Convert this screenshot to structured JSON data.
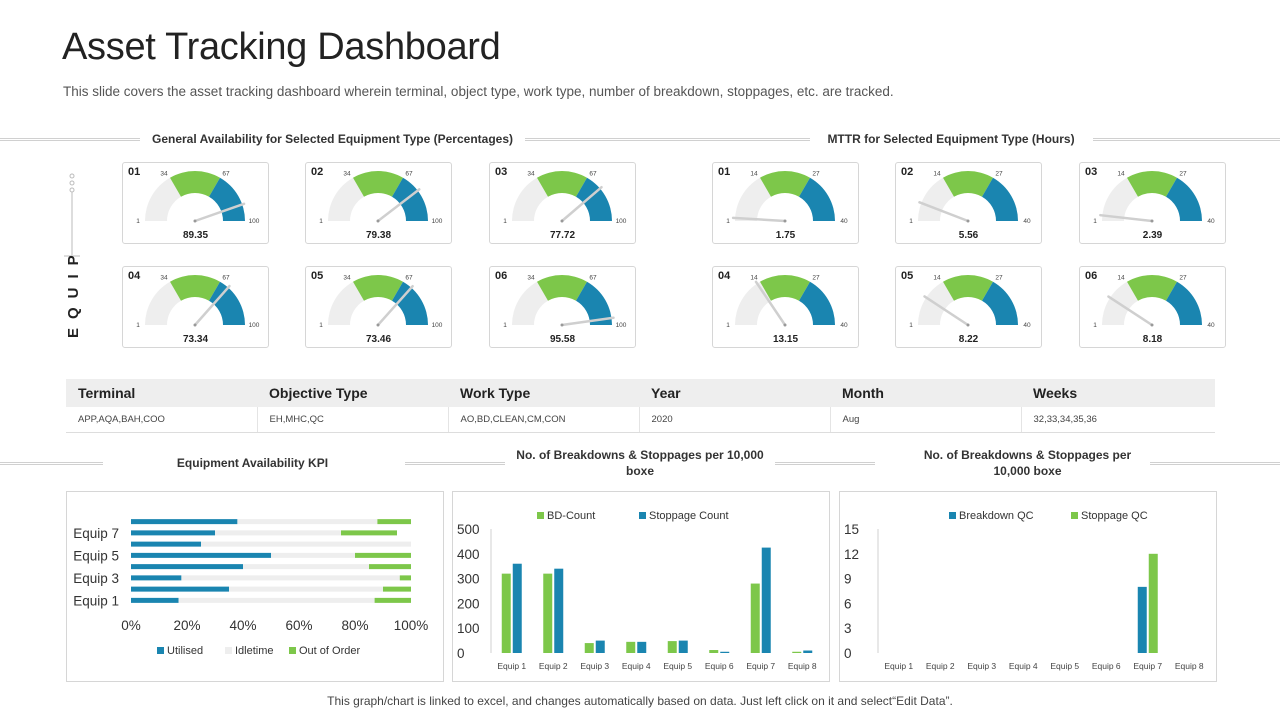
{
  "title": "Asset Tracking Dashboard",
  "subtitle": "This slide covers the asset tracking dashboard wherein terminal, object type, work type, number of breakdown, stoppages, etc. are tracked.",
  "equip_label": "EQUIP",
  "footer": "This graph/chart is linked to excel, and changes automatically based on data. Just left click on it and select“Edit Data”.",
  "colors": {
    "green": "#7dc74a",
    "blue": "#1a85b0",
    "gray": "#eeeeee",
    "needle": "#cfcfcf"
  },
  "availability": {
    "title": "General Availability  for Selected Equipment Type (Percentages)",
    "scale": {
      "min": 1,
      "t1": 34,
      "t2": 67,
      "max": 100
    },
    "gauges": [
      {
        "id": "01",
        "value": "89.35"
      },
      {
        "id": "02",
        "value": "79.38"
      },
      {
        "id": "03",
        "value": "77.72"
      },
      {
        "id": "04",
        "value": "73.34"
      },
      {
        "id": "05",
        "value": "73.46"
      },
      {
        "id": "06",
        "value": "95.58"
      }
    ]
  },
  "mttr": {
    "title": "MTTR for Selected Equipment Type (Hours)",
    "scale": {
      "min": 1,
      "t1": 14,
      "t2": 27,
      "max": 40
    },
    "gauges": [
      {
        "id": "01",
        "value": "1.75"
      },
      {
        "id": "02",
        "value": "5.56"
      },
      {
        "id": "03",
        "value": "2.39"
      },
      {
        "id": "04",
        "value": "13.15"
      },
      {
        "id": "05",
        "value": "8.22"
      },
      {
        "id": "06",
        "value": "8.18"
      }
    ]
  },
  "filters": {
    "headers": [
      "Terminal",
      "Objective Type",
      "Work Type",
      "Year",
      "Month",
      "Weeks"
    ],
    "values": [
      "APP,AQA,BAH,COO",
      "EH,MHC,QC",
      "AO,BD,CLEAN,CM,CON",
      "2020",
      "Aug",
      "32,33,34,35,36"
    ]
  },
  "chart_data": [
    {
      "type": "bar",
      "orientation": "horizontal",
      "stacked": true,
      "title": "Equipment Availability  KPI",
      "categories": [
        "Equip 1",
        "Equip 2",
        "Equip 3",
        "Equip 4",
        "Equip 5",
        "Equip 6",
        "Equip 7",
        "Equip 8"
      ],
      "tick_labels": [
        "Equip 1",
        "Equip 3",
        "Equip 5",
        "Equip 7"
      ],
      "x_ticks": [
        "0%",
        "20%",
        "40%",
        "60%",
        "80%",
        "100%"
      ],
      "xlim": [
        0,
        100
      ],
      "series": [
        {
          "name": "Utilised",
          "color": "#1a85b0",
          "values": [
            17,
            35,
            18,
            40,
            50,
            25,
            30,
            38
          ]
        },
        {
          "name": "Idletime",
          "color": "#eeeeee",
          "values": [
            70,
            55,
            78,
            45,
            30,
            75,
            45,
            50
          ]
        },
        {
          "name": "Out of Order",
          "color": "#7dc74a",
          "values": [
            13,
            10,
            4,
            15,
            20,
            0,
            20,
            12
          ]
        }
      ],
      "legend": "bottom"
    },
    {
      "type": "bar",
      "title": "No. of Breakdowns & Stoppages per 10,000 boxe",
      "categories": [
        "Equip 1",
        "Equip 2",
        "Equip 3",
        "Equip 4",
        "Equip 5",
        "Equip 6",
        "Equip 7",
        "Equip 8"
      ],
      "ylim": [
        0,
        500
      ],
      "y_ticks": [
        "0",
        "100",
        "200",
        "300",
        "400",
        "500"
      ],
      "series": [
        {
          "name": "BD-Count",
          "color": "#7dc74a",
          "values": [
            320,
            320,
            40,
            45,
            48,
            12,
            280,
            5
          ]
        },
        {
          "name": "Stoppage Count",
          "color": "#1a85b0",
          "values": [
            360,
            340,
            50,
            45,
            50,
            5,
            425,
            10
          ]
        }
      ],
      "legend": "top"
    },
    {
      "type": "bar",
      "title": "No. of Breakdowns & Stoppages per 10,000 boxe",
      "categories": [
        "Equip 1",
        "Equip 2",
        "Equip 3",
        "Equip 4",
        "Equip 5",
        "Equip 6",
        "Equip 7",
        "Equip 8"
      ],
      "ylim": [
        0,
        15
      ],
      "y_ticks": [
        "0",
        "3",
        "6",
        "9",
        "12",
        "15"
      ],
      "series": [
        {
          "name": "Breakdown QC",
          "color": "#1a85b0",
          "values": [
            0,
            0,
            0,
            0,
            0,
            0,
            8,
            0
          ]
        },
        {
          "name": "Stoppage QC",
          "color": "#7dc74a",
          "values": [
            0,
            0,
            0,
            0,
            0,
            0,
            12,
            0
          ]
        }
      ],
      "legend": "top"
    }
  ]
}
